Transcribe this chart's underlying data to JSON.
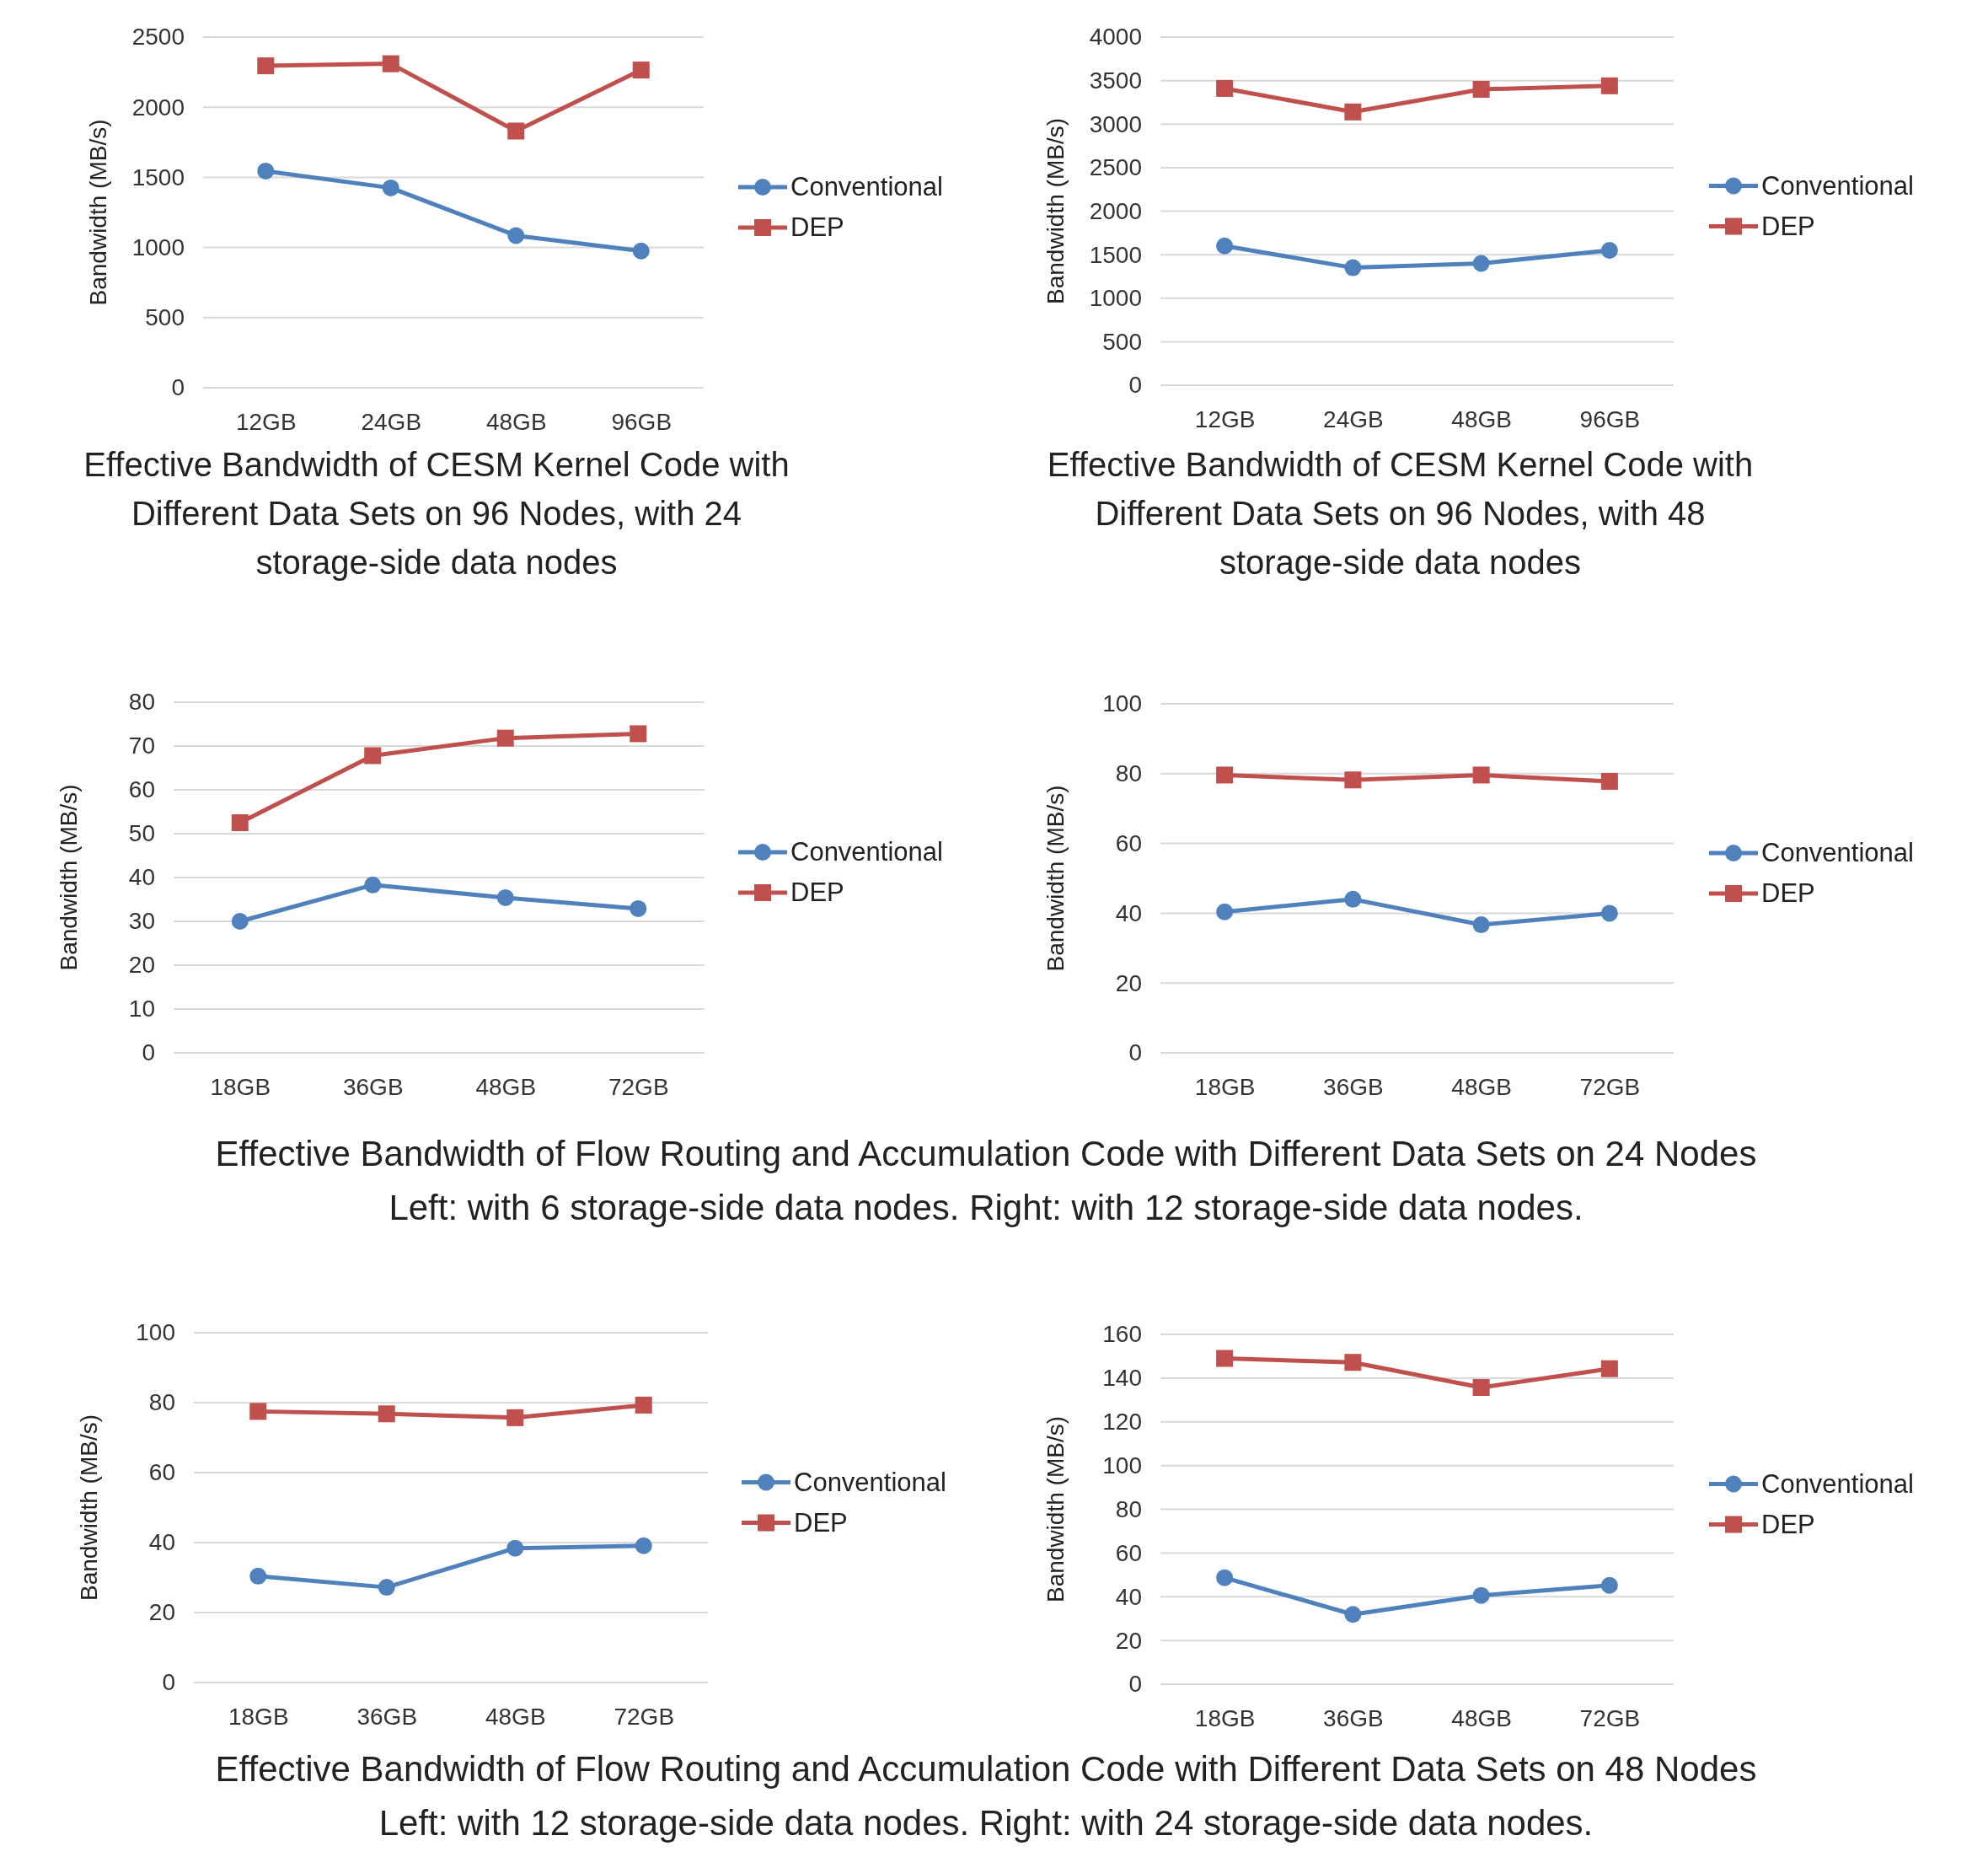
{
  "chart_data": [
    {
      "type": "line",
      "title": "Effective Bandwidth of CESM Kernel Code with Different Data Sets on 96 Nodes, with 24 storage-side data nodes",
      "ylabel": "Bandwidth (MB/s)",
      "categories": [
        "12GB",
        "24GB",
        "48GB",
        "96GB"
      ],
      "ylim": [
        0,
        2500
      ],
      "yticks": [
        0,
        500,
        1000,
        1500,
        2000,
        2500
      ],
      "grid": "y",
      "legend": "right",
      "series": [
        {
          "name": "Conventional",
          "color": "#4f81bd",
          "marker": "circle",
          "values": [
            1545,
            1425,
            1085,
            975
          ]
        },
        {
          "name": "DEP",
          "color": "#c0504d",
          "marker": "square",
          "values": [
            2295,
            2310,
            1830,
            2265
          ]
        }
      ]
    },
    {
      "type": "line",
      "title": "Effective Bandwidth of CESM Kernel Code with Different Data Sets on 96 Nodes, with 48 storage-side data nodes",
      "ylabel": "Bandwidth (MB/s)",
      "categories": [
        "12GB",
        "24GB",
        "48GB",
        "96GB"
      ],
      "ylim": [
        0,
        4000
      ],
      "yticks": [
        0,
        500,
        1000,
        1500,
        2000,
        2500,
        3000,
        3500,
        4000
      ],
      "grid": "y",
      "legend": "right",
      "series": [
        {
          "name": "Conventional",
          "color": "#4f81bd",
          "marker": "circle",
          "values": [
            1600,
            1350,
            1400,
            1550
          ]
        },
        {
          "name": "DEP",
          "color": "#c0504d",
          "marker": "square",
          "values": [
            3410,
            3140,
            3400,
            3440
          ]
        }
      ]
    },
    {
      "type": "line",
      "ylabel": "Bandwidth (MB/s)",
      "categories": [
        "18GB",
        "36GB",
        "48GB",
        "72GB"
      ],
      "ylim": [
        0,
        80
      ],
      "yticks": [
        0,
        10,
        20,
        30,
        40,
        50,
        60,
        70,
        80
      ],
      "grid": "y",
      "legend": "right",
      "annotations": [
        "Effective Bandwidth of Flow Routing and Accumulation Code with Different Data Sets on 24 Nodes",
        "Left: with 6 storage-side data nodes. Right: with 12 storage-side data nodes."
      ],
      "series": [
        {
          "name": "Conventional",
          "color": "#4f81bd",
          "marker": "circle",
          "values": [
            30,
            38.3,
            35.4,
            32.9
          ]
        },
        {
          "name": "DEP",
          "color": "#c0504d",
          "marker": "square",
          "values": [
            52.5,
            67.8,
            71.8,
            72.8
          ]
        }
      ]
    },
    {
      "type": "line",
      "ylabel": "Bandwidth (MB/s)",
      "categories": [
        "18GB",
        "36GB",
        "48GB",
        "72GB"
      ],
      "ylim": [
        0,
        100
      ],
      "yticks": [
        0,
        20,
        40,
        60,
        80,
        100
      ],
      "grid": "y",
      "legend": "right",
      "series": [
        {
          "name": "Conventional",
          "color": "#4f81bd",
          "marker": "circle",
          "values": [
            40.4,
            44,
            36.7,
            40
          ]
        },
        {
          "name": "DEP",
          "color": "#c0504d",
          "marker": "square",
          "values": [
            79.6,
            78.2,
            79.6,
            77.8
          ]
        }
      ]
    },
    {
      "type": "line",
      "ylabel": "Bandwidth (MB/s)",
      "categories": [
        "18GB",
        "36GB",
        "48GB",
        "72GB"
      ],
      "ylim": [
        0,
        100
      ],
      "yticks": [
        0,
        20,
        40,
        60,
        80,
        100
      ],
      "grid": "y",
      "legend": "right",
      "annotations": [
        "Effective Bandwidth of Flow Routing and Accumulation Code with Different Data Sets on 48 Nodes",
        "Left: with 12 storage-side data nodes. Right: with 24 storage-side data nodes."
      ],
      "series": [
        {
          "name": "Conventional",
          "color": "#4f81bd",
          "marker": "circle",
          "values": [
            30.4,
            27.2,
            38.4,
            39.1
          ]
        },
        {
          "name": "DEP",
          "color": "#c0504d",
          "marker": "square",
          "values": [
            77.5,
            76.8,
            75.7,
            79.3
          ]
        }
      ]
    },
    {
      "type": "line",
      "ylabel": "Bandwidth (MB/s)",
      "categories": [
        "18GB",
        "36GB",
        "48GB",
        "72GB"
      ],
      "ylim": [
        0,
        160
      ],
      "yticks": [
        0,
        20,
        40,
        60,
        80,
        100,
        120,
        140,
        160
      ],
      "grid": "y",
      "legend": "right",
      "series": [
        {
          "name": "Conventional",
          "color": "#4f81bd",
          "marker": "circle",
          "values": [
            48.7,
            31.9,
            40.6,
            45.2
          ]
        },
        {
          "name": "DEP",
          "color": "#c0504d",
          "marker": "square",
          "values": [
            149,
            147.2,
            135.7,
            144.3
          ]
        }
      ]
    }
  ]
}
